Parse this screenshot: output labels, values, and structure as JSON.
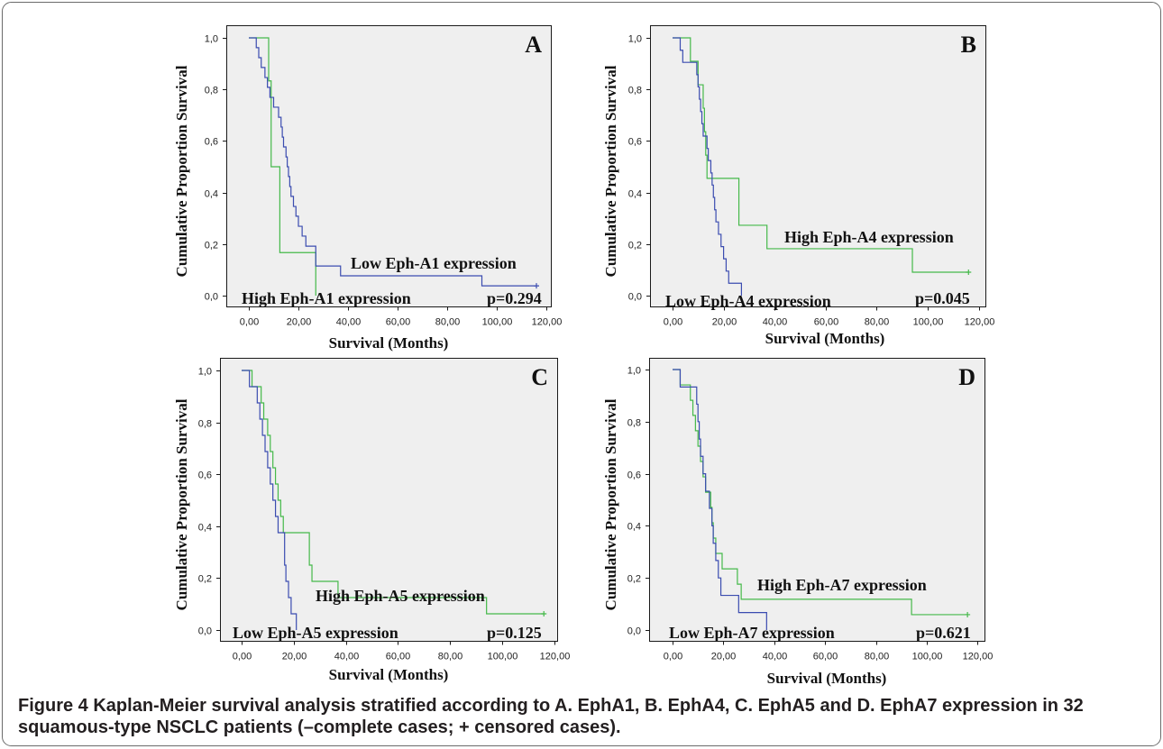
{
  "caption": {
    "label": "Figure 4",
    "text": "Kaplan-Meier survival analysis stratified according to A. EphA1, B. EphA4, C. EphA5 and D. EphA7 expression in 32 squamous-type NSCLC patients (–complete cases; + censored cases)."
  },
  "colors": {
    "low_expression": "#3b4cb0",
    "high_expression": "#45b94a",
    "plot_background": "#efefef",
    "frame": "#1a1a1a"
  },
  "chart_data": [
    {
      "type": "line",
      "step": true,
      "panel_label": "A",
      "ylabel": "Cumulative Proportion Survival",
      "xlabel": "Survival (Months)",
      "xlim": [
        0,
        120
      ],
      "ylim": [
        0,
        1
      ],
      "x_tick_values": [
        0,
        20,
        40,
        60,
        80,
        100,
        120
      ],
      "x_tick_labels": [
        "0,00",
        "20,00",
        "40,00",
        "60,00",
        "80,00",
        "100,00",
        "120,00"
      ],
      "y_tick_values": [
        1,
        0.8,
        0.6,
        0.4,
        0.2,
        0
      ],
      "y_tick_labels": [
        "1,0",
        "0,8",
        "0,6",
        "0,4",
        "0,2",
        "0,0"
      ],
      "grid": false,
      "p_value": "p=0.294",
      "series": [
        {
          "name": "Low Eph-A1 expression",
          "color": "#3b4cb0",
          "x": [
            0,
            3,
            4,
            5,
            6.5,
            7.5,
            8.5,
            10,
            12,
            13,
            13.5,
            14,
            15,
            15.5,
            16,
            16.5,
            17,
            18,
            19,
            20,
            21.5,
            23,
            27,
            37,
            94
          ],
          "y": [
            1,
            0.962,
            0.923,
            0.885,
            0.846,
            0.808,
            0.769,
            0.731,
            0.692,
            0.654,
            0.615,
            0.577,
            0.538,
            0.5,
            0.462,
            0.423,
            0.385,
            0.346,
            0.308,
            0.269,
            0.231,
            0.192,
            0.115,
            0.077,
            0.038
          ],
          "censored_x": [
            116
          ]
        },
        {
          "name": "High Eph-A1 expression",
          "color": "#45b94a",
          "x": [
            0,
            8,
            9,
            12.5,
            27
          ],
          "y": [
            1,
            0.833,
            0.5,
            0.167,
            0
          ],
          "censored_x": []
        }
      ]
    },
    {
      "type": "line",
      "step": true,
      "panel_label": "B",
      "ylabel": "Cumulative Proportion Survival",
      "xlabel": "Survival (Months)",
      "xlim": [
        0,
        120
      ],
      "ylim": [
        0,
        1
      ],
      "x_tick_values": [
        0,
        20,
        40,
        60,
        80,
        100,
        120
      ],
      "x_tick_labels": [
        "0,00",
        "20,00",
        "40,00",
        "60,00",
        "80,00",
        "100,00",
        "120,00"
      ],
      "y_tick_values": [
        1,
        0.8,
        0.6,
        0.4,
        0.2,
        0
      ],
      "y_tick_labels": [
        "1,0",
        "0,8",
        "0,6",
        "0,4",
        "0,2",
        "0,0"
      ],
      "grid": false,
      "p_value": "p=0.045",
      "series": [
        {
          "name": "Low Eph-A4 expression",
          "color": "#3b4cb0",
          "x": [
            0,
            3,
            4,
            9.5,
            10,
            10.5,
            11,
            11.5,
            12,
            13.5,
            14,
            15,
            15.5,
            16,
            16.5,
            17,
            18,
            19,
            20,
            21,
            22,
            27
          ],
          "y": [
            1,
            0.952,
            0.905,
            0.857,
            0.81,
            0.762,
            0.714,
            0.667,
            0.619,
            0.571,
            0.524,
            0.476,
            0.429,
            0.381,
            0.333,
            0.286,
            0.238,
            0.19,
            0.143,
            0.095,
            0.048,
            0
          ],
          "censored_x": []
        },
        {
          "name": "High Eph-A4 expression",
          "color": "#45b94a",
          "x": [
            0,
            7,
            10,
            12,
            12.5,
            13,
            13.5,
            26,
            37,
            94
          ],
          "y": [
            1,
            0.909,
            0.818,
            0.727,
            0.636,
            0.545,
            0.455,
            0.273,
            0.182,
            0.091
          ],
          "censored_x": [
            116
          ]
        }
      ]
    },
    {
      "type": "line",
      "step": true,
      "panel_label": "C",
      "ylabel": "Cumulative Proportion Survival",
      "xlabel": "Survival (Months)",
      "xlim": [
        0,
        120
      ],
      "ylim": [
        0,
        1
      ],
      "x_tick_values": [
        0,
        20,
        40,
        60,
        80,
        100,
        120
      ],
      "x_tick_labels": [
        "0,00",
        "20,00",
        "40,00",
        "60,00",
        "80,00",
        "100,00",
        "120,00"
      ],
      "y_tick_values": [
        1,
        0.8,
        0.6,
        0.4,
        0.2,
        0
      ],
      "y_tick_labels": [
        "1,0",
        "0,8",
        "0,6",
        "0,4",
        "0,2",
        "0,0"
      ],
      "grid": false,
      "p_value": "p=0.125",
      "series": [
        {
          "name": "Low Eph-A5 expression",
          "color": "#3b4cb0",
          "x": [
            0,
            3,
            6,
            7,
            8,
            9,
            10,
            11,
            12,
            13,
            14,
            16.5,
            17,
            18,
            19,
            21
          ],
          "y": [
            1,
            0.9375,
            0.875,
            0.8125,
            0.75,
            0.6875,
            0.625,
            0.5625,
            0.5,
            0.4375,
            0.375,
            0.25,
            0.1875,
            0.125,
            0.0625,
            0
          ],
          "censored_x": []
        },
        {
          "name": "High Eph-A5 expression",
          "color": "#45b94a",
          "x": [
            0,
            4,
            7.5,
            8.5,
            10,
            11,
            12,
            13,
            14,
            15,
            16,
            26,
            27,
            37,
            94
          ],
          "y": [
            1,
            0.9375,
            0.875,
            0.8125,
            0.75,
            0.6875,
            0.625,
            0.5625,
            0.5,
            0.4375,
            0.375,
            0.25,
            0.1875,
            0.125,
            0.0625
          ],
          "censored_x": [
            116
          ]
        }
      ]
    },
    {
      "type": "line",
      "step": true,
      "panel_label": "D",
      "ylabel": "Cumulative Proportion Survival",
      "xlabel": "Survival (Months)",
      "xlim": [
        0,
        120
      ],
      "ylim": [
        0,
        1
      ],
      "x_tick_values": [
        0,
        20,
        40,
        60,
        80,
        100,
        120
      ],
      "x_tick_labels": [
        "0,00",
        "20,00",
        "40,00",
        "60,00",
        "80,00",
        "100,00",
        "120,00"
      ],
      "y_tick_values": [
        1,
        0.8,
        0.6,
        0.4,
        0.2,
        0
      ],
      "y_tick_labels": [
        "1,0",
        "0,8",
        "0,6",
        "0,4",
        "0,2",
        "0,0"
      ],
      "grid": false,
      "p_value": "p=0.621",
      "series": [
        {
          "name": "Low Eph-A7 expression",
          "color": "#3b4cb0",
          "x": [
            0,
            3,
            9.5,
            10,
            10.5,
            11,
            12,
            13,
            14.5,
            15.5,
            16,
            17,
            18,
            19,
            26,
            37
          ],
          "y": [
            1,
            0.933,
            0.867,
            0.8,
            0.733,
            0.667,
            0.6,
            0.533,
            0.467,
            0.4,
            0.333,
            0.267,
            0.2,
            0.133,
            0.067,
            0
          ],
          "censored_x": []
        },
        {
          "name": "High Eph-A7 expression",
          "color": "#45b94a",
          "x": [
            0,
            3,
            7,
            8,
            9,
            10,
            11,
            12,
            13,
            15,
            15.5,
            16,
            17,
            19.5,
            25.5,
            27,
            94
          ],
          "y": [
            1,
            0.941,
            0.882,
            0.824,
            0.765,
            0.706,
            0.647,
            0.588,
            0.529,
            0.471,
            0.412,
            0.353,
            0.294,
            0.235,
            0.176,
            0.118,
            0.059
          ],
          "censored_x": [
            116
          ]
        }
      ]
    }
  ]
}
